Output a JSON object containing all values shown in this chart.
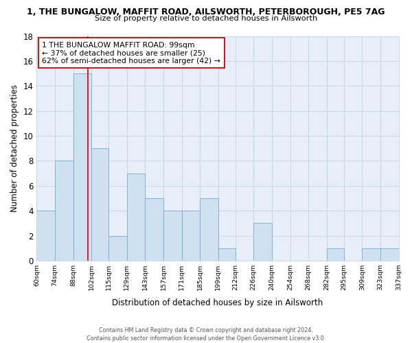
{
  "title1": "1, THE BUNGALOW, MAFFIT ROAD, AILSWORTH, PETERBOROUGH, PE5 7AG",
  "title2": "Size of property relative to detached houses in Ailsworth",
  "xlabel": "Distribution of detached houses by size in Ailsworth",
  "ylabel": "Number of detached properties",
  "bin_edges": [
    60,
    74,
    88,
    102,
    115,
    129,
    143,
    157,
    171,
    185,
    199,
    212,
    226,
    240,
    254,
    268,
    282,
    295,
    309,
    323,
    337
  ],
  "bar_heights": [
    4,
    8,
    15,
    9,
    2,
    7,
    5,
    4,
    4,
    5,
    1,
    0,
    3,
    0,
    0,
    0,
    1,
    0,
    1,
    1
  ],
  "bar_color": "#cfe0f0",
  "bar_edge_color": "#7aaacf",
  "grid_color": "#c8d8ec",
  "vline_x": 99,
  "vline_color": "#cc0000",
  "annotation_line1": "1 THE BUNGALOW MAFFIT ROAD: 99sqm",
  "annotation_line2": "← 37% of detached houses are smaller (25)",
  "annotation_line3": "62% of semi-detached houses are larger (42) →",
  "annotation_box_color": "#ffffff",
  "annotation_box_edge": "#cc0000",
  "ylim": [
    0,
    18
  ],
  "yticks": [
    0,
    2,
    4,
    6,
    8,
    10,
    12,
    14,
    16,
    18
  ],
  "tick_labels": [
    "60sqm",
    "74sqm",
    "88sqm",
    "102sqm",
    "115sqm",
    "129sqm",
    "143sqm",
    "157sqm",
    "171sqm",
    "185sqm",
    "199sqm",
    "212sqm",
    "226sqm",
    "240sqm",
    "254sqm",
    "268sqm",
    "282sqm",
    "295sqm",
    "309sqm",
    "323sqm",
    "337sqm"
  ],
  "footer": "Contains HM Land Registry data © Crown copyright and database right 2024.\nContains public sector information licensed under the Open Government Licence v3.0.",
  "fig_bg_color": "#ffffff",
  "plot_bg_color": "#e8eef8"
}
